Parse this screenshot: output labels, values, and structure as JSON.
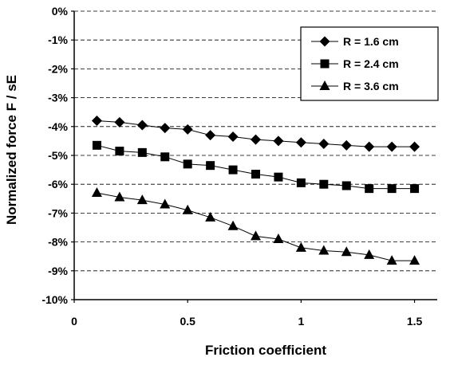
{
  "chart_data": {
    "type": "line",
    "title": "",
    "xlabel": "Friction coefficient",
    "ylabel": "Normalized force F / sE",
    "xlim": [
      0,
      1.6
    ],
    "ylim": [
      -10,
      0
    ],
    "x_ticks": [
      0,
      0.5,
      1,
      1.5
    ],
    "x_tick_labels": [
      "0",
      "0.5",
      "1",
      "1.5"
    ],
    "y_ticks": [
      0,
      -1,
      -2,
      -3,
      -4,
      -5,
      -6,
      -7,
      -8,
      -9,
      -10
    ],
    "y_tick_labels": [
      "0%",
      "-1%",
      "-2%",
      "-3%",
      "-4%",
      "-5%",
      "-6%",
      "-7%",
      "-8%",
      "-9%",
      "-10%"
    ],
    "y_unit": "%",
    "grid": "horizontal dashed",
    "legend_position": "top-right",
    "x": [
      0.1,
      0.2,
      0.3,
      0.4,
      0.5,
      0.6,
      0.7,
      0.8,
      0.9,
      1.0,
      1.1,
      1.2,
      1.3,
      1.4,
      1.5
    ],
    "series": [
      {
        "name": "R = 1.6 cm",
        "marker": "diamond",
        "values": [
          -3.8,
          -3.85,
          -3.95,
          -4.05,
          -4.1,
          -4.3,
          -4.35,
          -4.45,
          -4.5,
          -4.55,
          -4.6,
          -4.65,
          -4.7,
          -4.7,
          -4.7
        ]
      },
      {
        "name": "R = 2.4 cm",
        "marker": "square",
        "values": [
          -4.65,
          -4.85,
          -4.9,
          -5.05,
          -5.3,
          -5.35,
          -5.5,
          -5.65,
          -5.75,
          -5.95,
          -6.0,
          -6.05,
          -6.15,
          -6.15,
          -6.15
        ]
      },
      {
        "name": "R = 3.6 cm",
        "marker": "triangle",
        "values": [
          -6.3,
          -6.45,
          -6.55,
          -6.7,
          -6.9,
          -7.15,
          -7.45,
          -7.8,
          -7.9,
          -8.2,
          -8.3,
          -8.35,
          -8.45,
          -8.65,
          -8.65
        ]
      }
    ]
  }
}
